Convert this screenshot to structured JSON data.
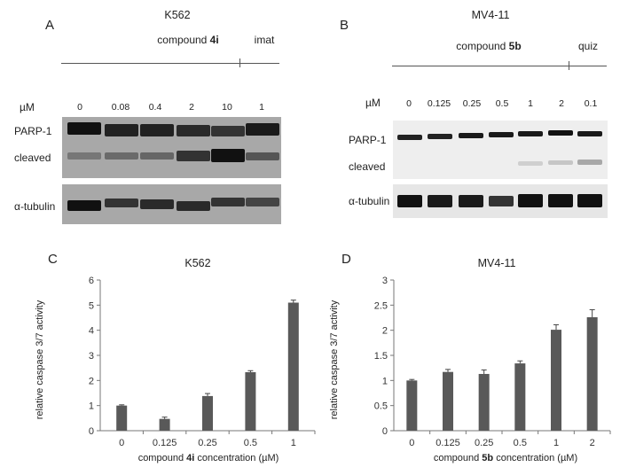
{
  "panelA": {
    "letter": "A",
    "cell_line": "K562",
    "compound_prefix": "compound ",
    "compound_bold": "4i",
    "control": "imat",
    "unit": "µM",
    "concentrations": [
      "0",
      "0.08",
      "0.4",
      "2",
      "10",
      "1"
    ],
    "labels": {
      "parp": "PARP-1",
      "cleaved": "cleaved",
      "tubulin": "α-tubulin"
    }
  },
  "panelB": {
    "letter": "B",
    "cell_line": "MV4-11",
    "compound_prefix": "compound ",
    "compound_bold": "5b",
    "control": "quiz",
    "unit": "µM",
    "concentrations": [
      "0",
      "0.125",
      "0.25",
      "0.5",
      "1",
      "2",
      "0.1"
    ],
    "labels": {
      "parp": "PARP-1",
      "cleaved": "cleaved",
      "tubulin": "α-tubulin"
    }
  },
  "chart_data": [
    {
      "panel": "C",
      "type": "bar",
      "title": "K562",
      "ylabel": "relative caspase 3/7 activity",
      "xlabel_prefix": "compound ",
      "xlabel_bold": "4i",
      "xlabel_suffix": " concentration (µM)",
      "categories": [
        "0",
        "0.125",
        "0.25",
        "0.5",
        "1"
      ],
      "values": [
        1.0,
        0.47,
        1.38,
        2.33,
        5.1
      ],
      "errors": [
        0.03,
        0.07,
        0.1,
        0.06,
        0.1
      ],
      "ylim": [
        0,
        6
      ],
      "yticks": [
        "0",
        "1",
        "2",
        "3",
        "4",
        "5",
        "6"
      ],
      "bar_color": "#595959"
    },
    {
      "panel": "D",
      "type": "bar",
      "title": "MV4-11",
      "ylabel": "relative caspase 3/7 activity",
      "xlabel_prefix": "compound ",
      "xlabel_bold": "5b",
      "xlabel_suffix": " concentration (µM)",
      "categories": [
        "0",
        "0.125",
        "0.25",
        "0.5",
        "1",
        "2"
      ],
      "values": [
        1.0,
        1.17,
        1.13,
        1.34,
        2.01,
        2.26
      ],
      "errors": [
        0.02,
        0.05,
        0.08,
        0.05,
        0.1,
        0.15
      ],
      "ylim": [
        0,
        3
      ],
      "yticks": [
        "0",
        "0.5",
        "1",
        "1.5",
        "2",
        "2.5",
        "3"
      ],
      "bar_color": "#595959"
    }
  ]
}
